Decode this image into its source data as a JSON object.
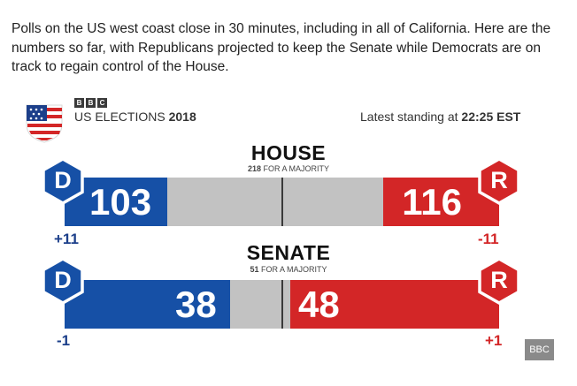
{
  "intro_text": "Polls on the US west coast close in 30 minutes, including in all of California. Here are the numbers so far, with Republicans projected to keep the Senate while Democrats are on track to regain control of the House.",
  "graphic": {
    "bbc_letters": [
      "B",
      "B",
      "C"
    ],
    "title_prefix": "US ELECTIONS",
    "title_year": "2018",
    "standing_prefix": "Latest standing at",
    "standing_time": "22:25 EST"
  },
  "house": {
    "title": "HOUSE",
    "majority_number": "218",
    "majority_text": "FOR A MAJORITY",
    "dem_seats": "103",
    "rep_seats": "116",
    "dem_change": "+11",
    "rep_change": "-11",
    "dem_fraction": 0.237,
    "rep_fraction": 0.266
  },
  "senate": {
    "title": "SENATE",
    "majority_number": "51",
    "majority_text": "FOR A MAJORITY",
    "dem_seats": "38",
    "rep_seats": "48",
    "dem_change": "-1",
    "rep_change": "+1",
    "dem_fraction": 0.38,
    "rep_fraction": 0.48
  },
  "party_labels": {
    "dem": "D",
    "rep": "R"
  },
  "colors": {
    "dem": "#1650a6",
    "rep": "#d32627",
    "neutral": "#c2c2c2"
  },
  "source_badge": "BBC"
}
